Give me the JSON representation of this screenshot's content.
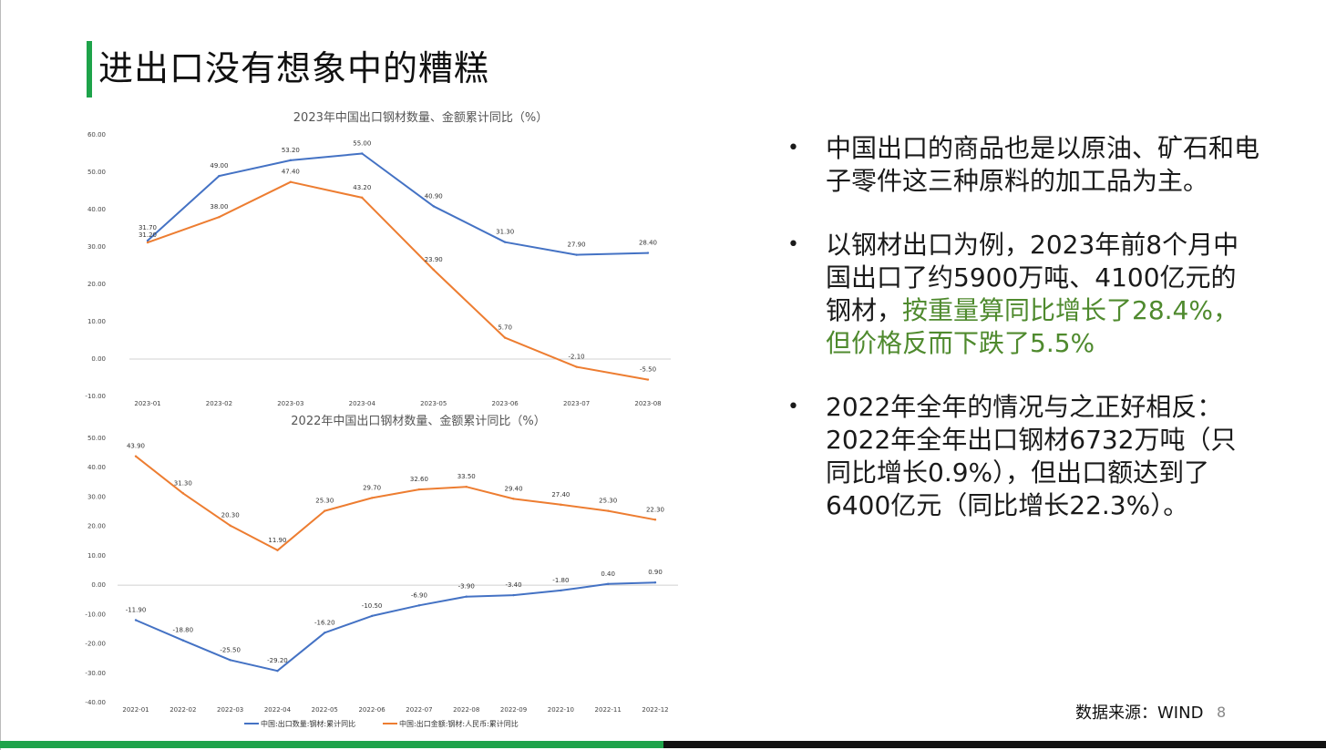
{
  "slide": {
    "title": "进出口没有想象中的糟糕",
    "source": "数据来源：WIND",
    "page_number": "8"
  },
  "bullets": [
    {
      "text": "中国出口的商品也是以原油、矿石和电子零件这三种原料的加工品为主。",
      "highlight": ""
    },
    {
      "text": "以钢材出口为例，2023年前8个月中国出口了约5900万吨、4100亿元的钢材，",
      "highlight": "按重量算同比增长了28.4%，但价格反而下跌了5.5%"
    },
    {
      "text": "2022年全年的情况与之正好相反：2022年全年出口钢材6732万吨（只同比增长0.9%），但出口额达到了6400亿元（同比增长22.3%）。",
      "highlight": ""
    }
  ],
  "colors": {
    "quantity": "#4472c4",
    "amount": "#ed7d31",
    "accent_green": "#1ea34a",
    "highlight_text": "#4f8a2e"
  },
  "chart_data": [
    {
      "type": "line",
      "title": "2023年中国出口钢材数量、金额累计同比（%）",
      "categories": [
        "2023-01",
        "2023-02",
        "2023-03",
        "2023-04",
        "2023-05",
        "2023-06",
        "2023-07",
        "2023-08"
      ],
      "y_ticks": [
        "60.00",
        "50.00",
        "40.00",
        "30.00",
        "20.00",
        "10.00",
        "0.00",
        "-10.00"
      ],
      "ylim": [
        -10,
        60
      ],
      "series": [
        {
          "key": "quantity",
          "values": [
            31.7,
            49.0,
            53.2,
            55.0,
            40.9,
            31.3,
            27.9,
            28.4
          ],
          "labels": [
            "31.70",
            "49.00",
            "53.20",
            "55.00",
            "40.90",
            "31.30",
            "27.90",
            "28.40"
          ]
        },
        {
          "key": "amount",
          "values": [
            31.2,
            38.0,
            47.4,
            43.2,
            23.9,
            5.7,
            -2.1,
            -5.5
          ],
          "labels": [
            "31.20",
            "38.00",
            "47.40",
            "43.20",
            "23.90",
            "5.70",
            "-2.10",
            "-5.50"
          ]
        }
      ]
    },
    {
      "type": "line",
      "title": "2022年中国出口钢材数量、金额累计同比（%）",
      "categories": [
        "2022-01",
        "2022-02",
        "2022-03",
        "2022-04",
        "2022-05",
        "2022-06",
        "2022-07",
        "2022-08",
        "2022-09",
        "2022-10",
        "2022-11",
        "2022-12"
      ],
      "y_ticks": [
        "50.00",
        "40.00",
        "30.00",
        "20.00",
        "10.00",
        "0.00",
        "-10.00",
        "-20.00",
        "-30.00",
        "-40.00"
      ],
      "ylim": [
        -40,
        50
      ],
      "legend": [
        "中国:出口数量:钢材:累计同比",
        "中国:出口金额:钢材:人民币:累计同比"
      ],
      "series": [
        {
          "key": "quantity",
          "name": "中国:出口数量:钢材:累计同比",
          "values": [
            -11.9,
            -18.8,
            -25.5,
            -29.2,
            -16.2,
            -10.5,
            -6.9,
            -3.9,
            -3.4,
            -1.8,
            0.4,
            0.9
          ],
          "labels": [
            "-11.90",
            "-18.80",
            "-25.50",
            "-29.20",
            "-16.20",
            "-10.50",
            "-6.90",
            "-3.90",
            "-3.40",
            "-1.80",
            "0.40",
            "0.90"
          ]
        },
        {
          "key": "amount",
          "name": "中国:出口金额:钢材:人民币:累计同比",
          "values": [
            43.9,
            31.3,
            20.3,
            11.9,
            25.3,
            29.7,
            32.6,
            33.5,
            29.4,
            27.4,
            25.3,
            22.3
          ],
          "labels": [
            "43.90",
            "31.30",
            "20.30",
            "11.90",
            "25.30",
            "29.70",
            "32.60",
            "33.50",
            "29.40",
            "27.40",
            "25.30",
            "22.30"
          ]
        }
      ]
    }
  ]
}
